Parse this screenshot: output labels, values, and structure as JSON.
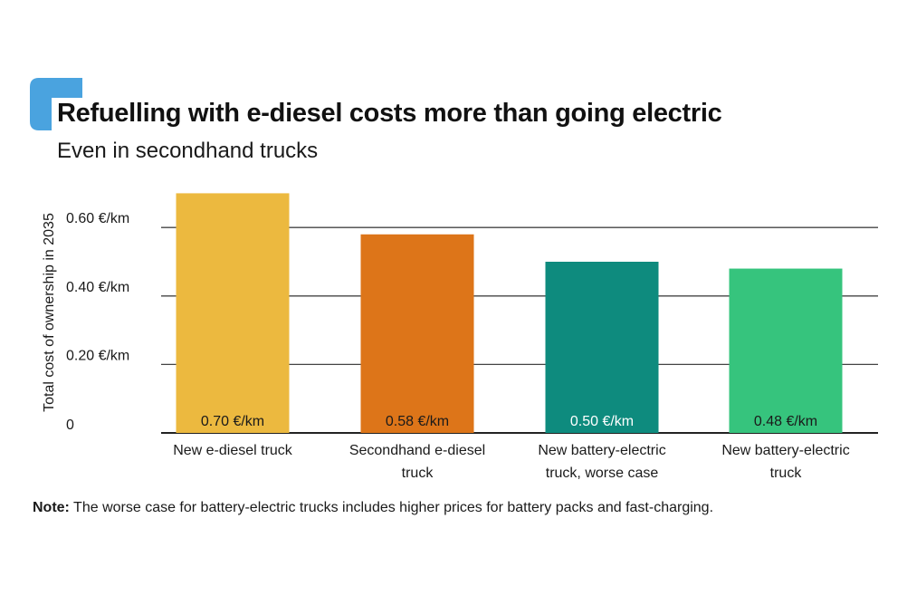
{
  "header": {
    "title": "Refuelling with e-diesel costs more than going electric",
    "subtitle": "Even in secondhand trucks"
  },
  "note": {
    "label": "Note:",
    "text": " The worse case for battery-electric trucks includes higher prices for battery packs and fast-charging."
  },
  "colors": {
    "accent": "#4aa3df",
    "gridline": "#444444",
    "bars": [
      "#ecb93f",
      "#dd7519",
      "#0e8b7e",
      "#36c47d"
    ]
  },
  "chart_data": {
    "type": "bar",
    "title": "Refuelling with e-diesel costs more than going electric",
    "subtitle": "Even in secondhand trucks",
    "ylabel": "Total cost of ownership in 2035",
    "xlabel": "",
    "categories": [
      [
        "New e-diesel truck"
      ],
      [
        "Secondhand e-diesel",
        "truck"
      ],
      [
        "New battery-electric",
        "truck, worse case"
      ],
      [
        "New battery-electric",
        "truck"
      ]
    ],
    "values": [
      0.7,
      0.58,
      0.5,
      0.48
    ],
    "data_labels": [
      "0.70 €/km",
      "0.58 €/km",
      "0.50 €/km",
      "0.48 €/km"
    ],
    "yticks": [
      0,
      0.2,
      0.4,
      0.6
    ],
    "ytick_labels": [
      "0",
      "0.20 €/km",
      "0.40 €/km",
      "0.60 €/km"
    ],
    "ylim": [
      0,
      0.7
    ],
    "grid": true,
    "legend": "none"
  }
}
